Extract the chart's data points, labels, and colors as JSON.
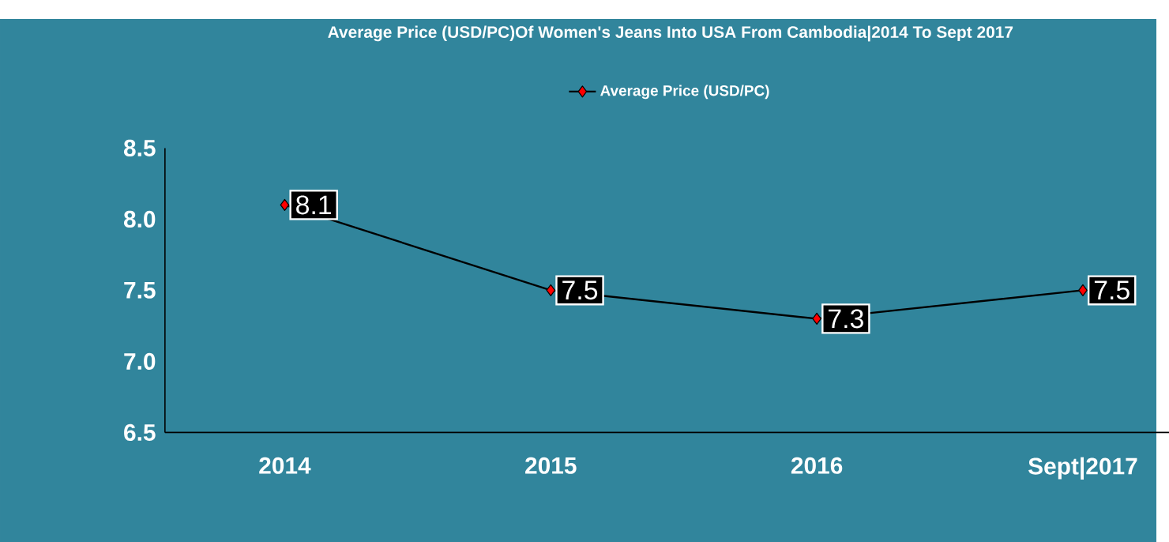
{
  "chart_data": {
    "type": "line",
    "title": "Average Price (USD/PC)Of Women's Jeans Into USA From Cambodia|2014 To Sept 2017",
    "categories": [
      "2014",
      "2015",
      "2016",
      "Sept|2017"
    ],
    "series": [
      {
        "name": "Average Price (USD/PC)",
        "color": "#000000",
        "values": [
          8.1,
          7.5,
          7.3,
          7.5
        ]
      }
    ],
    "ylim": [
      6.5,
      8.5
    ],
    "yticks": [
      {
        "value": 6.5,
        "label": "6.5"
      },
      {
        "value": 7,
        "label": "7.0"
      },
      {
        "value": 7.5,
        "label": "7.5"
      },
      {
        "value": 8,
        "label": "8.0"
      },
      {
        "value": 8.5,
        "label": "8.5"
      }
    ],
    "data_labels": true,
    "legend": "top",
    "marker": "diamond",
    "line_style": "solid",
    "grid": false
  }
}
